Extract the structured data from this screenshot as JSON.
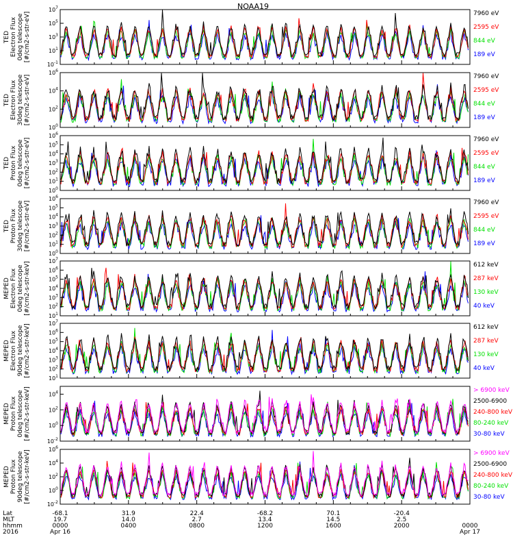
{
  "title": "NOAA19",
  "colors": {
    "black": "#000000",
    "red": "#ff0000",
    "green": "#00e000",
    "blue": "#0000ff",
    "magenta": "#ff00ff"
  },
  "chart_data": {
    "type": "line",
    "time_axis": {
      "start": "2016 Apr 16 00:00",
      "end": "2016 Apr 17 00:00",
      "ticks_hhmm": [
        "0000",
        "0400",
        "0800",
        "1200",
        "1600",
        "2000",
        "0000"
      ]
    },
    "footer": {
      "row_labels": [
        "Lat",
        "MLT",
        "hhmm",
        "2016"
      ],
      "columns": [
        {
          "lat": "-68.1",
          "mlt": "19.7",
          "hhmm": "0000",
          "date": "Apr 16"
        },
        {
          "lat": "31.9",
          "mlt": "14.0",
          "hhmm": "0400",
          "date": ""
        },
        {
          "lat": "22.4",
          "mlt": "2.7",
          "hhmm": "0800",
          "date": ""
        },
        {
          "lat": "-68.2",
          "mlt": "13.4",
          "hhmm": "1200",
          "date": ""
        },
        {
          "lat": "70.1",
          "mlt": "14.5",
          "hhmm": "1600",
          "date": ""
        },
        {
          "lat": "-20.4",
          "mlt": "2.5",
          "hhmm": "2000",
          "date": ""
        },
        {
          "lat": "",
          "mlt": "",
          "hhmm": "0000",
          "date": "Apr 17"
        }
      ]
    },
    "panels": [
      {
        "ylabel": [
          "TED",
          "Electron Flux",
          "0deg telescope",
          "[#/cm2-s-str-eV]"
        ],
        "ylim_exp": [
          -1,
          7
        ],
        "yticks": [
          -1,
          1,
          3,
          5,
          7
        ],
        "legend": [
          "7960 eV",
          "2595 eV",
          "844 eV",
          "189 eV"
        ],
        "series_colors": [
          "black",
          "red",
          "green",
          "blue"
        ]
      },
      {
        "ylabel": [
          "TED",
          "Electron Flux",
          "30deg telescope",
          "[#/cm2-s-str-eV]"
        ],
        "ylim_exp": [
          0,
          6
        ],
        "yticks": [
          0,
          2,
          4,
          6
        ],
        "legend": [
          "7960 eV",
          "2595 eV",
          "844 eV",
          "189 eV"
        ],
        "series_colors": [
          "black",
          "red",
          "green",
          "blue"
        ]
      },
      {
        "ylabel": [
          "TED",
          "Proton Flux",
          "0deg telescope",
          "[#/cm2-s-str-eV]"
        ],
        "ylim_exp": [
          0,
          6
        ],
        "yticks": [
          0,
          1,
          2,
          3,
          4,
          5,
          6
        ],
        "legend": [
          "7960 eV",
          "2595 eV",
          "844 eV",
          "189 eV"
        ],
        "series_colors": [
          "black",
          "red",
          "green",
          "blue"
        ]
      },
      {
        "ylabel": [
          "TED",
          "Proton Flux",
          "30deg telescope",
          "[#/cm2-s-str-eV]"
        ],
        "ylim_exp": [
          0,
          6
        ],
        "yticks": [
          0,
          1,
          2,
          3,
          4,
          5,
          6
        ],
        "legend": [
          "7960 eV",
          "2595 eV",
          "844 eV",
          "189 eV"
        ],
        "series_colors": [
          "black",
          "red",
          "green",
          "blue"
        ]
      },
      {
        "ylabel": [
          "MEPED",
          "Electron Flux",
          "0deg telescope",
          "[#/cm2-s-str-keV]"
        ],
        "ylim_exp": [
          1,
          7
        ],
        "yticks": [
          1,
          2,
          3,
          4,
          5,
          6,
          7
        ],
        "legend": [
          "612 keV",
          "287 keV",
          "130 keV",
          "40 keV"
        ],
        "series_colors": [
          "black",
          "red",
          "green",
          "blue"
        ]
      },
      {
        "ylabel": [
          "MEPED",
          "Electron Flux",
          "90deg telescope",
          "[#/cm2-s-str-keV]"
        ],
        "ylim_exp": [
          1,
          7
        ],
        "yticks": [
          1,
          2,
          3,
          4,
          5,
          6,
          7
        ],
        "legend": [
          "612 keV",
          "287 keV",
          "130 keV",
          "40 keV"
        ],
        "series_colors": [
          "black",
          "red",
          "green",
          "blue"
        ]
      },
      {
        "ylabel": [
          "MEPED",
          "Proton Flux",
          "0deg telescope",
          "[#/cm2-s-str-keV]"
        ],
        "ylim_exp": [
          -2,
          5
        ],
        "yticks": [
          -2,
          0,
          2,
          4
        ],
        "legend": [
          "> 6900 keV",
          "2500-6900",
          "240-800 keV",
          "80-240 keV",
          "30-80 keV"
        ],
        "series_colors": [
          "magenta",
          "black",
          "red",
          "green",
          "blue"
        ]
      },
      {
        "ylabel": [
          "MEPED",
          "Proton Flux",
          "90deg telescope",
          "[#/cm2-s-str-keV]"
        ],
        "ylim_exp": [
          -2,
          6
        ],
        "yticks": [
          -2,
          0,
          2,
          4,
          6
        ],
        "legend": [
          "> 6900 keV",
          "2500-6900",
          "240-800 keV",
          "80-240 keV",
          "30-80 keV"
        ],
        "series_colors": [
          "magenta",
          "black",
          "red",
          "green",
          "blue"
        ]
      }
    ]
  }
}
